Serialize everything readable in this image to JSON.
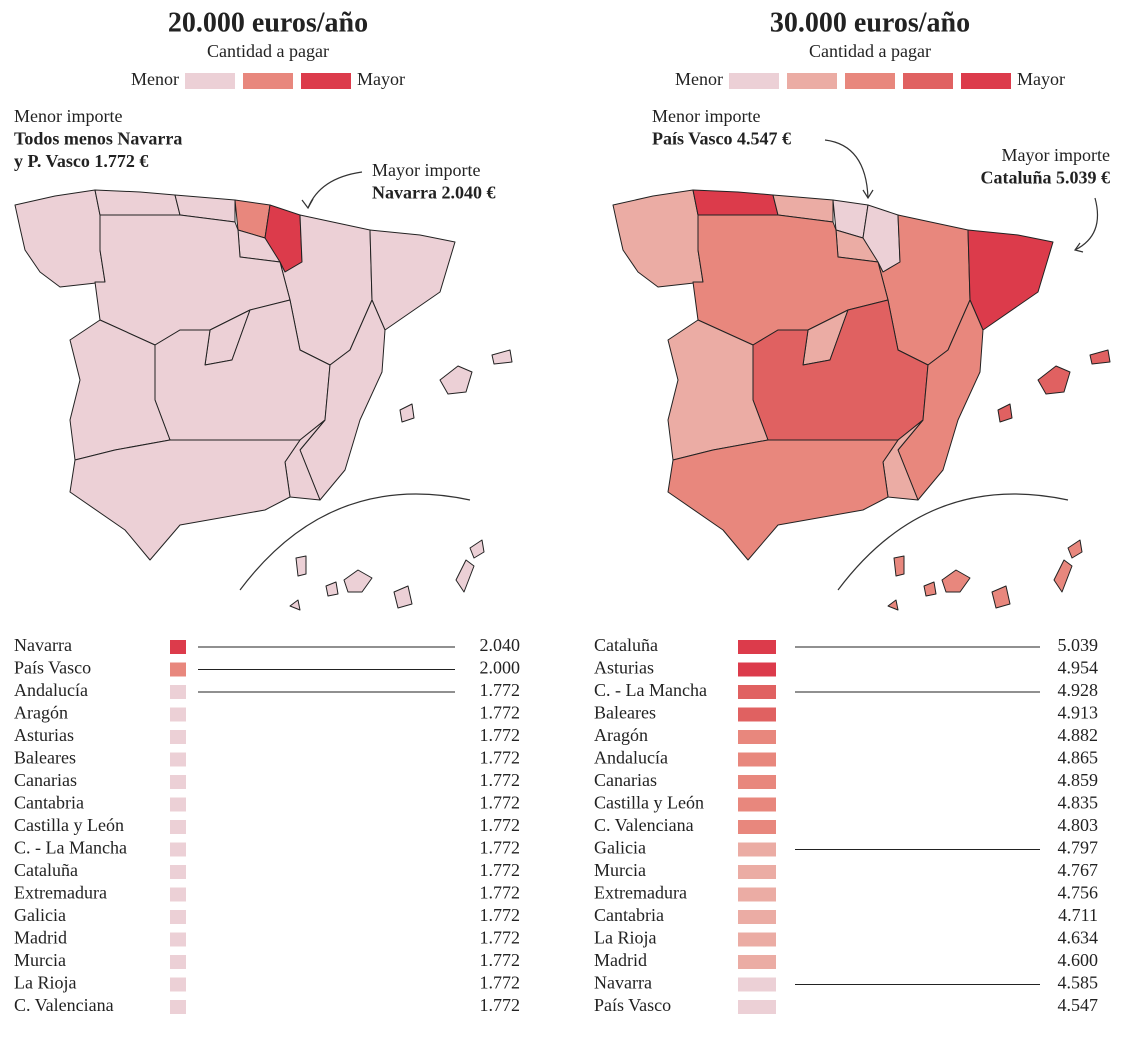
{
  "panels": [
    {
      "title": "20.000 euros/año",
      "subtitle": "Cantidad a pagar",
      "legend": {
        "min_label": "Menor",
        "max_label": "Mayor",
        "colors": [
          "#ecd0d6",
          "#e8877d",
          "#dc3b4b"
        ]
      },
      "low": {
        "label": "Menor importe",
        "text": [
          "Todos menos Navarra",
          "y P. Vasco 1.772 €"
        ]
      },
      "high": {
        "label": "Mayor importe",
        "text": [
          "Navarra 2.040 €"
        ]
      },
      "map_colors": [
        "#ecd0d6",
        "#ecd0d6",
        "#ecd0d6",
        "#e8877d",
        "#dc3b4b",
        "#ecd0d6",
        "#ecd0d6",
        "#ecd0d6",
        "#ecd0d6",
        "#ecd0d6",
        "#ecd0d6",
        "#ecd0d6",
        "#ecd0d6",
        "#ecd0d6",
        "#ecd0d6",
        "#ecd0d6",
        "#ecd0d6"
      ],
      "rows": [
        {
          "region": "Navarra",
          "value": "2.040",
          "color": "#dc3b4b",
          "connector": true
        },
        {
          "region": "País Vasco",
          "value": "2.000",
          "color": "#e8877d",
          "connector": true
        },
        {
          "region": "Andalucía",
          "value": "1.772",
          "color": "#ecd0d6",
          "connector": true
        },
        {
          "region": "Aragón",
          "value": "1.772",
          "color": "#ecd0d6",
          "connector": false
        },
        {
          "region": "Asturias",
          "value": "1.772",
          "color": "#ecd0d6",
          "connector": false
        },
        {
          "region": "Baleares",
          "value": "1.772",
          "color": "#ecd0d6",
          "connector": false
        },
        {
          "region": "Canarias",
          "value": "1.772",
          "color": "#ecd0d6",
          "connector": false
        },
        {
          "region": "Cantabria",
          "value": "1.772",
          "color": "#ecd0d6",
          "connector": false
        },
        {
          "region": "Castilla y León",
          "value": "1.772",
          "color": "#ecd0d6",
          "connector": false
        },
        {
          "region": "C. - La Mancha",
          "value": "1.772",
          "color": "#ecd0d6",
          "connector": false
        },
        {
          "region": "Cataluña",
          "value": "1.772",
          "color": "#ecd0d6",
          "connector": false
        },
        {
          "region": "Extremadura",
          "value": "1.772",
          "color": "#ecd0d6",
          "connector": false
        },
        {
          "region": "Galicia",
          "value": "1.772",
          "color": "#ecd0d6",
          "connector": false
        },
        {
          "region": "Madrid",
          "value": "1.772",
          "color": "#ecd0d6",
          "connector": false
        },
        {
          "region": "Murcia",
          "value": "1.772",
          "color": "#ecd0d6",
          "connector": false
        },
        {
          "region": "La Rioja",
          "value": "1.772",
          "color": "#ecd0d6",
          "connector": false
        },
        {
          "region": "C. Valenciana",
          "value": "1.772",
          "color": "#ecd0d6",
          "connector": false
        }
      ]
    },
    {
      "title": "30.000 euros/año",
      "subtitle": "Cantidad a pagar",
      "legend": {
        "min_label": "Menor",
        "max_label": "Mayor",
        "colors": [
          "#ecd0d6",
          "#ebaca4",
          "#e8877d",
          "#e06161",
          "#dc3b4b"
        ]
      },
      "low": {
        "label": "Menor importe",
        "text": [
          "País Vasco 4.547 €"
        ]
      },
      "high": {
        "label": "Mayor importe",
        "text": [
          "Cataluña 5.039 €"
        ]
      },
      "map_colors": [
        "#ebaca4",
        "#dc3b4b",
        "#ebaca4",
        "#ecd0d6",
        "#ecd0d6",
        "#ebaca4",
        "#e8877d",
        "#dc3b4b",
        "#e8877d",
        "#ebaca4",
        "#e06161",
        "#e8877d",
        "#ebaca4",
        "#ebaca4",
        "#e8877d",
        "#e06161",
        "#e8877d"
      ],
      "rows": [
        {
          "region": "Cataluña",
          "value": "5.039",
          "color": "#dc3b4b",
          "connector": true
        },
        {
          "region": "Asturias",
          "value": "4.954",
          "color": "#dc3b4b",
          "connector": false
        },
        {
          "region": "C. - La Mancha",
          "value": "4.928",
          "color": "#e06161",
          "connector": true
        },
        {
          "region": "Baleares",
          "value": "4.913",
          "color": "#e06161",
          "connector": false
        },
        {
          "region": "Aragón",
          "value": "4.882",
          "color": "#e8877d",
          "connector": false
        },
        {
          "region": "Andalucía",
          "value": "4.865",
          "color": "#e8877d",
          "connector": false
        },
        {
          "region": "Canarias",
          "value": "4.859",
          "color": "#e8877d",
          "connector": false
        },
        {
          "region": "Castilla y León",
          "value": "4.835",
          "color": "#e8877d",
          "connector": false
        },
        {
          "region": "C. Valenciana",
          "value": "4.803",
          "color": "#e8877d",
          "connector": false
        },
        {
          "region": "Galicia",
          "value": "4.797",
          "color": "#ebaca4",
          "connector": true
        },
        {
          "region": "Murcia",
          "value": "4.767",
          "color": "#ebaca4",
          "connector": false
        },
        {
          "region": "Extremadura",
          "value": "4.756",
          "color": "#ebaca4",
          "connector": false
        },
        {
          "region": "Cantabria",
          "value": "4.711",
          "color": "#ebaca4",
          "connector": false
        },
        {
          "region": "La Rioja",
          "value": "4.634",
          "color": "#ebaca4",
          "connector": false
        },
        {
          "region": "Madrid",
          "value": "4.600",
          "color": "#ebaca4",
          "connector": false
        },
        {
          "region": "Navarra",
          "value": "4.585",
          "color": "#ecd0d6",
          "connector": true
        },
        {
          "region": "País Vasco",
          "value": "4.547",
          "color": "#ecd0d6",
          "connector": false
        }
      ]
    }
  ]
}
